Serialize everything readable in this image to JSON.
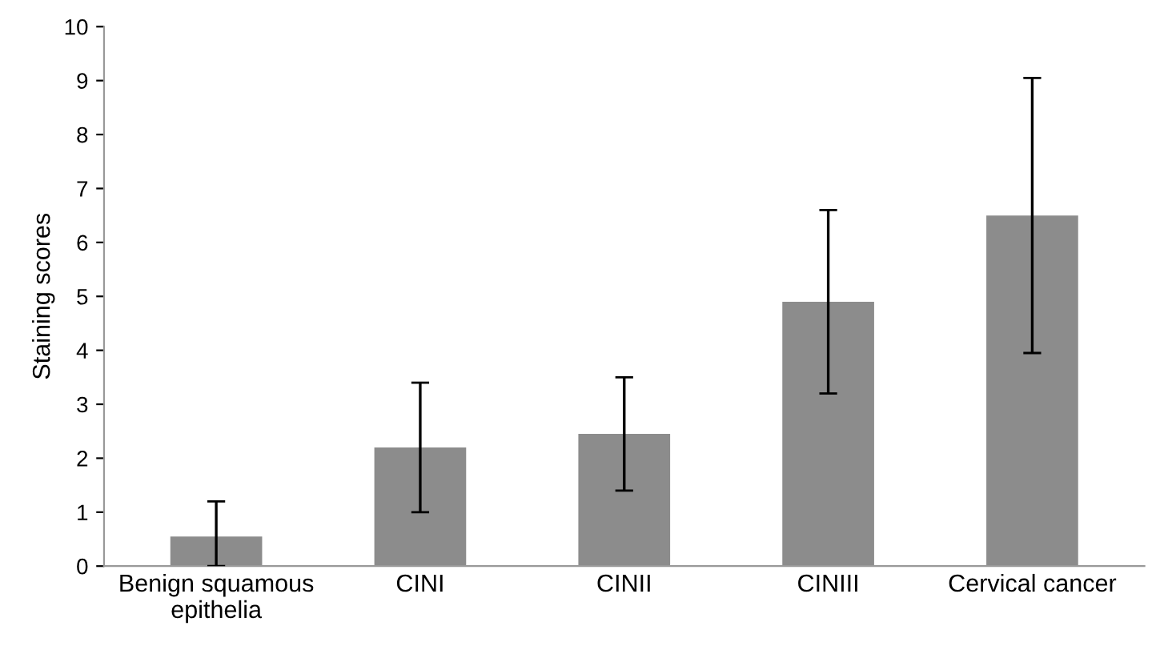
{
  "chart_data": {
    "type": "bar",
    "ylabel": "Staining scores",
    "categories": [
      "Benign squamous\nepithelia",
      "CINI",
      "CINII",
      "CINIII",
      "Cervical cancer"
    ],
    "values": [
      0.55,
      2.2,
      2.45,
      4.9,
      6.5
    ],
    "errors": [
      [
        0,
        1.2
      ],
      1.2,
      1.05,
      1.7,
      2.55
    ],
    "color": "#8c8c8c",
    "ylim": [
      0,
      10
    ],
    "yticks": [
      0,
      1,
      2,
      3,
      4,
      5,
      6,
      7,
      8,
      9,
      10
    ],
    "grid": false,
    "legend": false
  }
}
